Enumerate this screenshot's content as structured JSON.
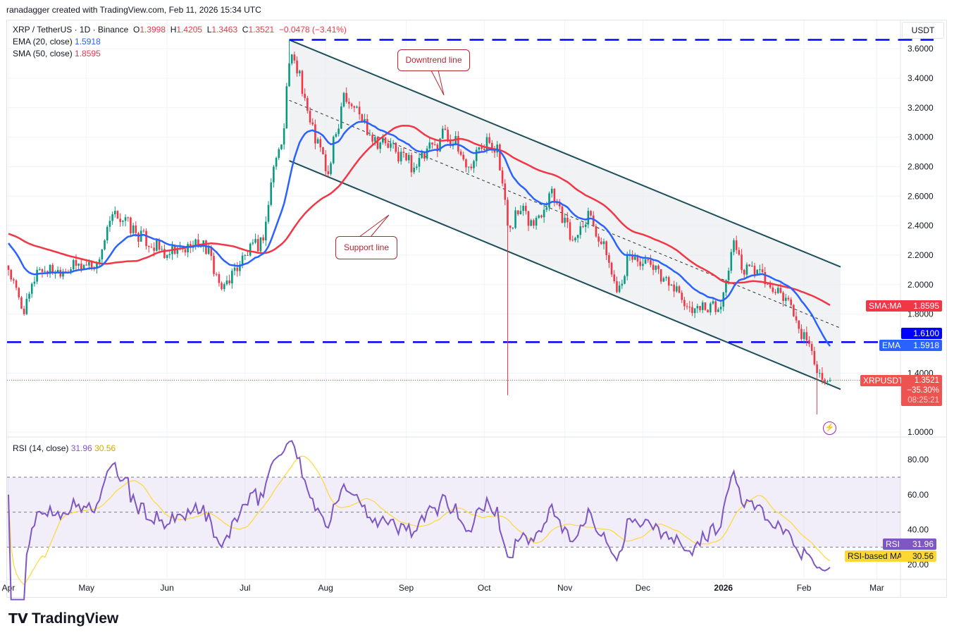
{
  "header": {
    "credit": "ranadagger created with TradingView.com, Feb 11, 2026 15:34 UTC"
  },
  "legend": {
    "symbol": "XRP / TetherUS · 1D · Binance",
    "o_label": "O",
    "open": "1.3998",
    "h_label": "H",
    "high": "1.4205",
    "l_label": "L",
    "low": "1.3463",
    "c_label": "C",
    "close": "1.3521",
    "change": "−0.0478 (−3.41%)",
    "ema_label": "EMA (20, close)",
    "ema_value": "1.5918",
    "sma_label": "SMA (50, close)",
    "sma_value": "1.8595",
    "rsi_label": "RSI (14, close)",
    "rsi_value": "31.96",
    "rsi_ma_value": "30.56"
  },
  "currency": "USDT",
  "annotations": {
    "downtrend": "Downtrend line",
    "support": "Support line"
  },
  "tags": {
    "sma_name": "SMA:MA",
    "sma_val": "1.8595",
    "level_val": "1.6100",
    "ema_name": "EMA",
    "ema_val": "1.5918",
    "sym_name": "XRPUSDT",
    "sym_price": "1.3521",
    "sym_pct": "−35.30%",
    "sym_timer": "08:25:21",
    "rsi_name": "RSI",
    "rsi_val": "31.96",
    "rsima_name": "RSI-based MA",
    "rsima_val": "30.56"
  },
  "colors": {
    "up": "#089981",
    "down": "#f23645",
    "ema": "#2962ff",
    "sma": "#f23645",
    "rsi": "#7e57c2",
    "rsi_ma": "#fdd835",
    "level": "#0000ff",
    "channel": "#1c4f5a"
  },
  "logo": "TradingView",
  "chart_data": {
    "type": "candlestick",
    "price_axis": {
      "ticks": [
        "3.6000",
        "3.4000",
        "3.2000",
        "3.0000",
        "2.8000",
        "2.6000",
        "2.4000",
        "2.2000",
        "2.0000",
        "1.8000",
        "1.4000",
        "1.0000"
      ],
      "range": [
        1.0,
        3.6
      ]
    },
    "time_axis": {
      "ticks": [
        "Apr",
        "May",
        "Jun",
        "Jul",
        "Aug",
        "Sep",
        "Oct",
        "Nov",
        "Dec",
        "2026",
        "Feb",
        "Mar"
      ]
    },
    "rsi_axis": {
      "ticks": [
        "80.00",
        "60.00",
        "40.00",
        "20.00"
      ],
      "bands": [
        70,
        50,
        30
      ]
    },
    "horizontal_levels": [
      3.66,
      1.61
    ],
    "channel": {
      "upper": [
        [
          "2025-07-18",
          3.66
        ],
        [
          "2026-02-11",
          2.12
        ]
      ],
      "lower": [
        [
          "2025-07-18",
          2.84
        ],
        [
          "2026-02-11",
          1.29
        ]
      ]
    },
    "approx_closes": [
      [
        "2025-04-01",
        2.1
      ],
      [
        "2025-04-07",
        1.8
      ],
      [
        "2025-04-12",
        2.1
      ],
      [
        "2025-04-20",
        2.1
      ],
      [
        "2025-05-05",
        2.15
      ],
      [
        "2025-05-12",
        2.5
      ],
      [
        "2025-05-20",
        2.35
      ],
      [
        "2025-06-01",
        2.2
      ],
      [
        "2025-06-10",
        2.25
      ],
      [
        "2025-06-15",
        2.3
      ],
      [
        "2025-06-22",
        1.97
      ],
      [
        "2025-07-01",
        2.2
      ],
      [
        "2025-07-08",
        2.3
      ],
      [
        "2025-07-12",
        2.8
      ],
      [
        "2025-07-15",
        2.95
      ],
      [
        "2025-07-18",
        3.5
      ],
      [
        "2025-07-22",
        3.45
      ],
      [
        "2025-07-26",
        3.1
      ],
      [
        "2025-08-02",
        2.75
      ],
      [
        "2025-08-08",
        3.3
      ],
      [
        "2025-08-12",
        3.2
      ],
      [
        "2025-08-20",
        3.0
      ],
      [
        "2025-08-28",
        2.9
      ],
      [
        "2025-09-05",
        2.8
      ],
      [
        "2025-09-12",
        2.95
      ],
      [
        "2025-09-16",
        3.05
      ],
      [
        "2025-09-25",
        2.8
      ],
      [
        "2025-10-02",
        3.0
      ],
      [
        "2025-10-06",
        2.95
      ],
      [
        "2025-10-10",
        2.4
      ],
      [
        "2025-10-15",
        2.5
      ],
      [
        "2025-10-20",
        2.4
      ],
      [
        "2025-10-27",
        2.65
      ],
      [
        "2025-11-04",
        2.3
      ],
      [
        "2025-11-10",
        2.5
      ],
      [
        "2025-11-17",
        2.2
      ],
      [
        "2025-11-21",
        1.95
      ],
      [
        "2025-11-26",
        2.2
      ],
      [
        "2025-12-05",
        2.1
      ],
      [
        "2025-12-12",
        2.0
      ],
      [
        "2025-12-18",
        1.85
      ],
      [
        "2025-12-31",
        1.85
      ],
      [
        "2026-01-05",
        2.3
      ],
      [
        "2026-01-08",
        2.1
      ],
      [
        "2026-01-14",
        2.1
      ],
      [
        "2026-01-20",
        1.95
      ],
      [
        "2026-01-26",
        1.9
      ],
      [
        "2026-01-30",
        1.7
      ],
      [
        "2026-02-04",
        1.55
      ],
      [
        "2026-02-06",
        1.4
      ],
      [
        "2026-02-11",
        1.3521
      ]
    ],
    "notable_wicks": [
      [
        "2025-10-10",
        1.25
      ],
      [
        "2026-02-06",
        1.12
      ],
      [
        "2025-07-18",
        3.66
      ]
    ]
  }
}
